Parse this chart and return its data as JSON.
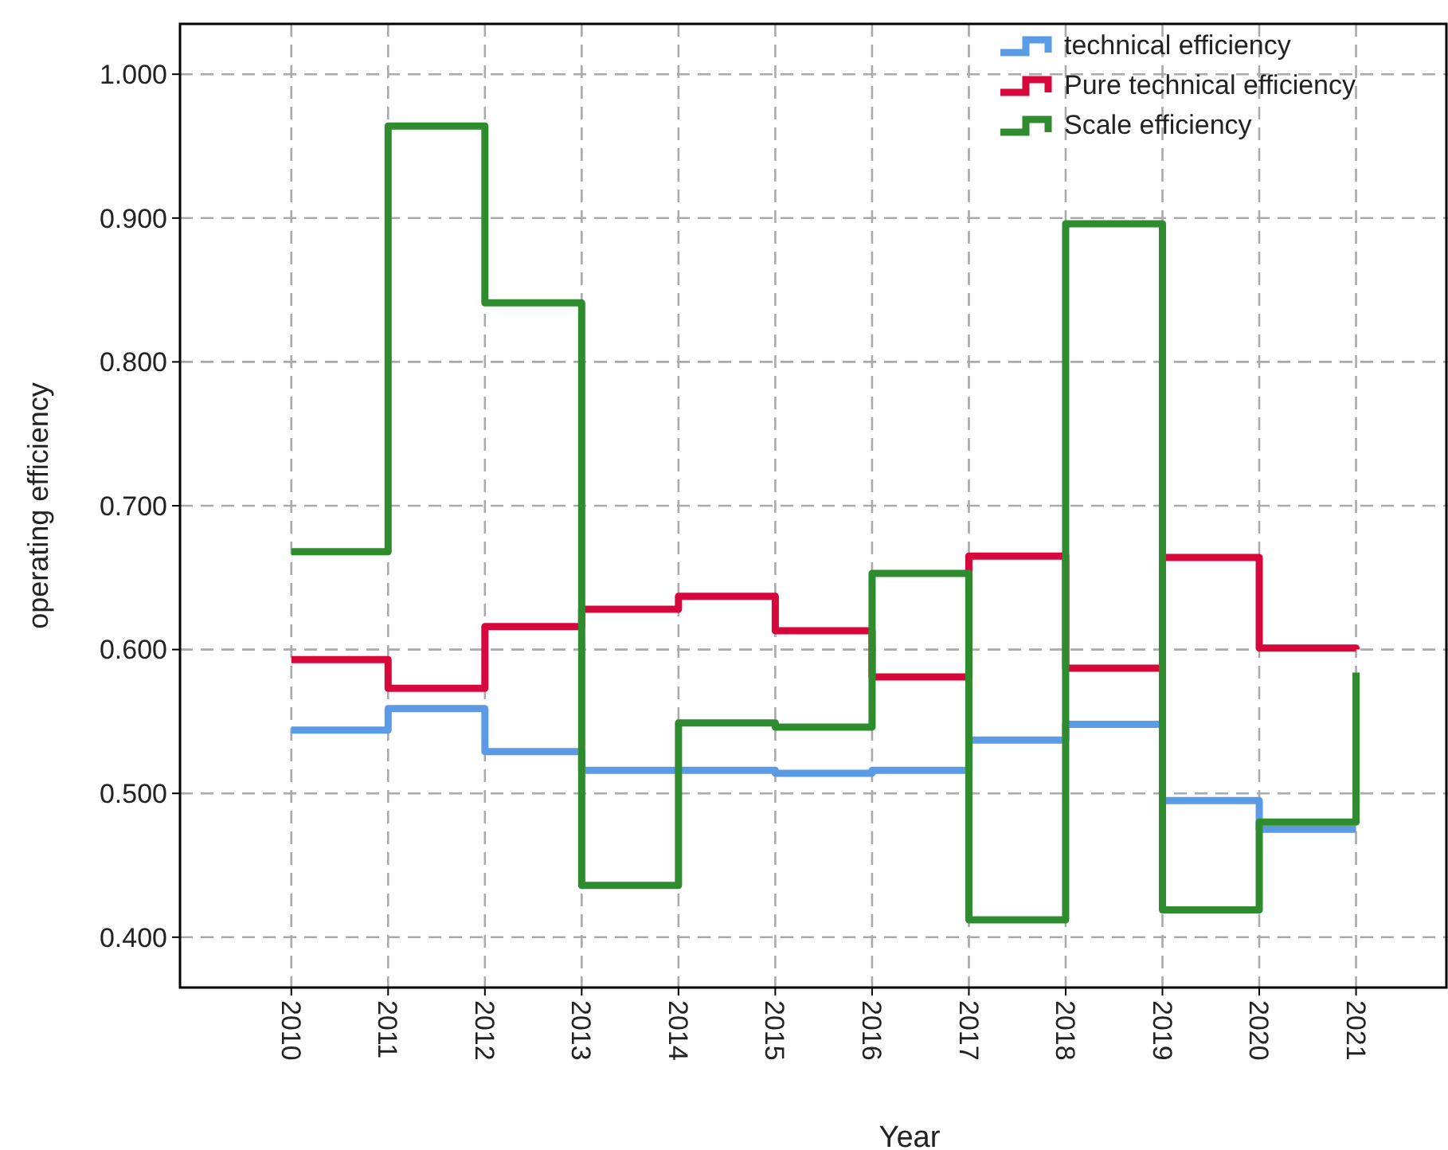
{
  "chart_data": {
    "type": "step",
    "xlabel": "Year",
    "ylabel": "operating efficiency",
    "x": [
      2010,
      2011,
      2012,
      2013,
      2014,
      2015,
      2016,
      2017,
      2018,
      2019,
      2020,
      2021
    ],
    "series": [
      {
        "name": "technical efficiency",
        "color": "#5b9be6",
        "values": [
          0.544,
          0.559,
          0.529,
          0.516,
          0.516,
          0.514,
          0.516,
          0.537,
          0.548,
          0.495,
          0.475,
          0.475
        ]
      },
      {
        "name": "Pure technical efficiency",
        "color": "#d6083b",
        "values": [
          0.593,
          0.573,
          0.616,
          0.628,
          0.637,
          0.613,
          0.581,
          0.665,
          0.587,
          0.664,
          0.601,
          0.6
        ]
      },
      {
        "name": "Scale efficiency",
        "color": "#2e8b2e",
        "values": [
          0.668,
          0.964,
          0.841,
          0.436,
          0.549,
          0.546,
          0.653,
          0.412,
          0.896,
          0.419,
          0.48,
          0.584
        ]
      }
    ],
    "xlim": [
      2008.85,
      2021.95
    ],
    "xticks": [
      2010,
      2011,
      2012,
      2013,
      2014,
      2015,
      2016,
      2017,
      2018,
      2019,
      2020,
      2021
    ],
    "ylim": [
      0.365,
      1.035
    ],
    "yticks": [
      {
        "value": 0.4,
        "label": "0.400"
      },
      {
        "value": 0.5,
        "label": "0.500"
      },
      {
        "value": 0.6,
        "label": "0.600"
      },
      {
        "value": 0.7,
        "label": "0.700"
      },
      {
        "value": 0.8,
        "label": "0.800"
      },
      {
        "value": 0.9,
        "label": "0.900"
      },
      {
        "value": 1.0,
        "label": "1.000"
      }
    ],
    "grid": true,
    "legend": "top right",
    "line_style": "solid"
  }
}
